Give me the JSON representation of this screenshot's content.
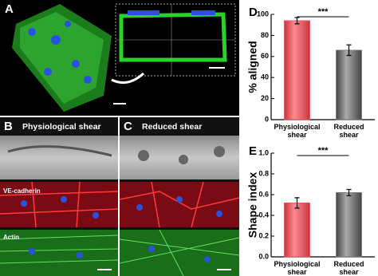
{
  "panels": {
    "a": {
      "label": "A"
    },
    "b": {
      "label": "B",
      "title": "Physiological shear",
      "stains": [
        "VE-cadherin",
        "Actin"
      ]
    },
    "c": {
      "label": "C",
      "title": "Reduced shear"
    }
  },
  "chart_data": [
    {
      "type": "bar",
      "panel": "D",
      "ylabel": "% aligned",
      "categories": [
        "Physiological shear",
        "Reduced shear"
      ],
      "values": [
        94,
        66
      ],
      "errors": [
        3,
        5
      ],
      "colors": [
        "#e8505a",
        "#7a7a7a"
      ],
      "ylim": [
        0,
        100
      ],
      "yticks": [
        0,
        20,
        40,
        60,
        80,
        100
      ],
      "significance": "***"
    },
    {
      "type": "bar",
      "panel": "E",
      "ylabel": "Shape index",
      "categories": [
        "Physiological shear",
        "Reduced shear"
      ],
      "values": [
        0.52,
        0.62
      ],
      "errors": [
        0.05,
        0.03
      ],
      "colors": [
        "#e8505a",
        "#7a7a7a"
      ],
      "ylim": [
        0,
        1
      ],
      "yticks": [
        {
          "value": 0,
          "label": "0.0"
        },
        0.2,
        0.4,
        0.6,
        0.8,
        {
          "value": 1,
          "label": "1.0"
        }
      ],
      "significance": "***"
    }
  ]
}
